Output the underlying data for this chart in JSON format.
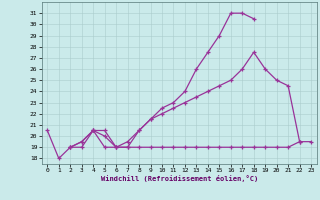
{
  "xlabel": "Windchill (Refroidissement éolien,°C)",
  "xlim": [
    -0.5,
    23.5
  ],
  "ylim": [
    17.5,
    32.0
  ],
  "yticks": [
    18,
    19,
    20,
    21,
    22,
    23,
    24,
    25,
    26,
    27,
    28,
    29,
    30,
    31
  ],
  "xticks": [
    0,
    1,
    2,
    3,
    4,
    5,
    6,
    7,
    8,
    9,
    10,
    11,
    12,
    13,
    14,
    15,
    16,
    17,
    18,
    19,
    20,
    21,
    22,
    23
  ],
  "bg_color": "#caeaea",
  "line_color": "#993399",
  "grid_color": "#aacccc",
  "line1_x": [
    0,
    1,
    2,
    3,
    4,
    5,
    6,
    7,
    8,
    9,
    10,
    11,
    12,
    13,
    14,
    15,
    16,
    17,
    18
  ],
  "line1_y": [
    20.5,
    18.0,
    19.0,
    19.5,
    20.5,
    20.0,
    19.0,
    19.0,
    20.5,
    21.5,
    22.5,
    23.0,
    24.0,
    26.0,
    27.5,
    29.0,
    31.0,
    31.0,
    30.5
  ],
  "line2_x": [
    2,
    3,
    4,
    5,
    6,
    7,
    8,
    9,
    10,
    11,
    12,
    13,
    14,
    15,
    16,
    17,
    18,
    19,
    20,
    21,
    22
  ],
  "line2_y": [
    19.0,
    19.5,
    20.5,
    20.5,
    19.0,
    19.5,
    20.5,
    21.5,
    22.0,
    22.5,
    23.0,
    23.5,
    24.0,
    24.5,
    25.0,
    26.0,
    27.5,
    26.0,
    25.0,
    24.5,
    19.5
  ],
  "line3_x": [
    2,
    3,
    4,
    5,
    6,
    7,
    8,
    9,
    10,
    11,
    12,
    13,
    14,
    15,
    16,
    17,
    18,
    19,
    20,
    21,
    22,
    23
  ],
  "line3_y": [
    19.0,
    19.0,
    20.5,
    19.0,
    19.0,
    19.0,
    19.0,
    19.0,
    19.0,
    19.0,
    19.0,
    19.0,
    19.0,
    19.0,
    19.0,
    19.0,
    19.0,
    19.0,
    19.0,
    19.0,
    19.5,
    19.5
  ]
}
